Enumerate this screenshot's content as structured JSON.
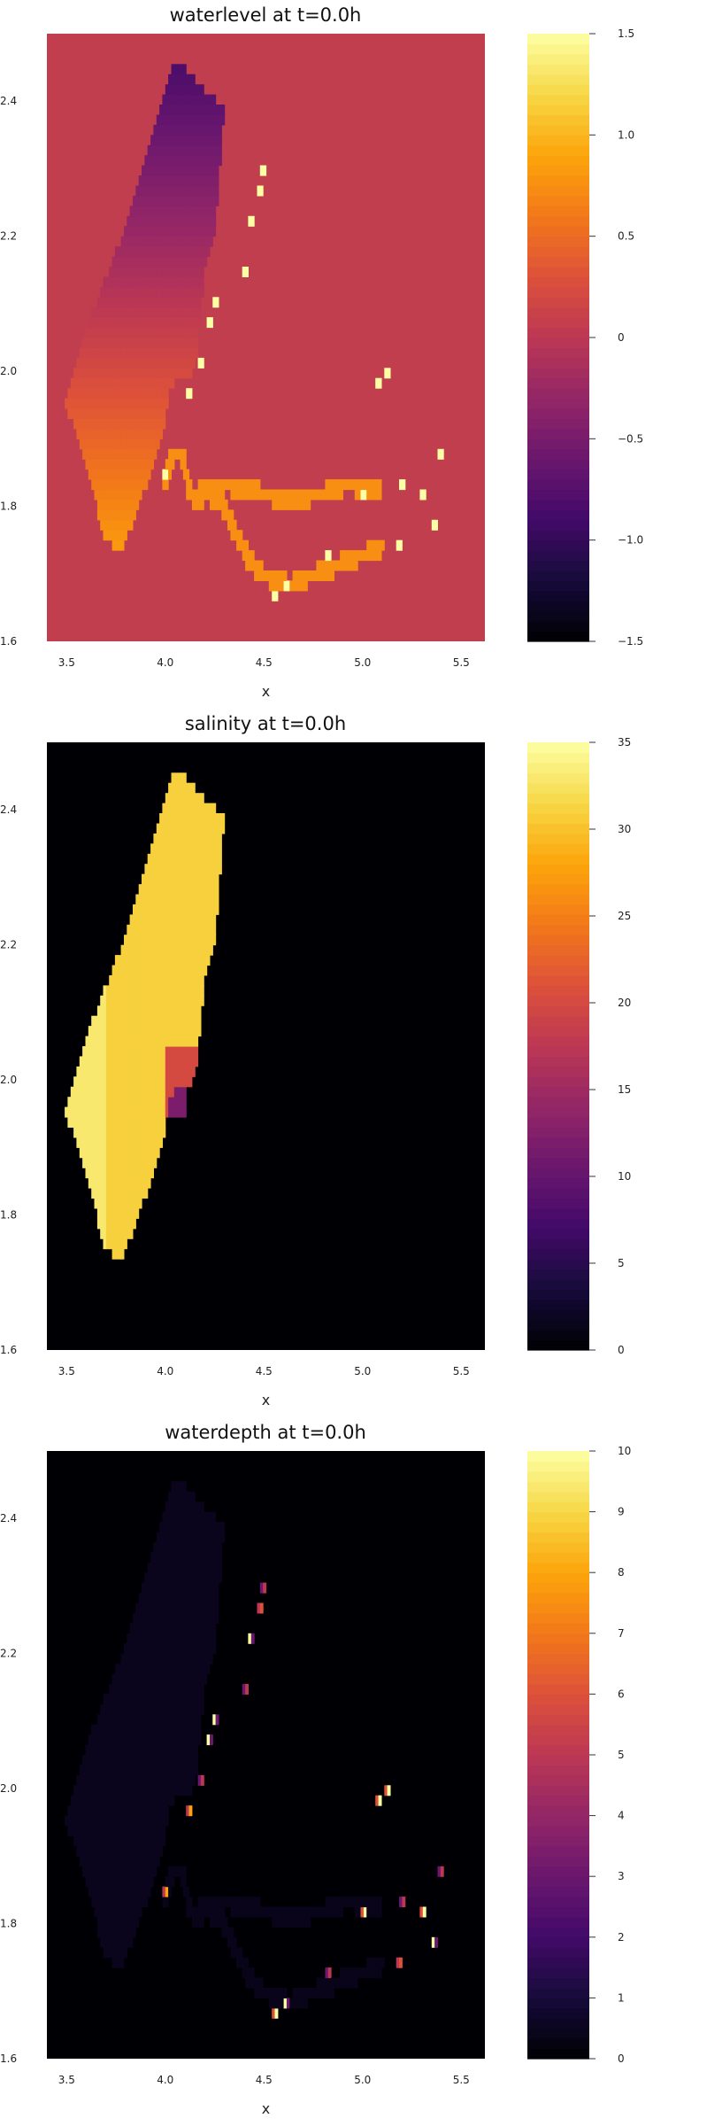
{
  "chart_data": [
    {
      "type": "heatmap",
      "title": "waterlevel at t=0.0h",
      "xlabel": "x",
      "ylabel": "",
      "xlim": [
        3.4,
        5.62
      ],
      "ylim": [
        1.6,
        2.5
      ],
      "xticks": [
        "3.5",
        "4.0",
        "4.5",
        "5.0",
        "5.5"
      ],
      "yticks": [
        "1.6",
        "1.8",
        "2.0",
        "2.2",
        "2.4"
      ],
      "colormap": "inferno",
      "colorbar_range": [
        -1.5,
        1.5
      ],
      "colorbar_ticks": [
        "−1.5",
        "−1.0",
        "−0.5",
        "0",
        "0.5",
        "1.0",
        "1.5"
      ],
      "background_value": 0,
      "background_color": "#c13e4e",
      "regions": {
        "basin_value_north": -0.85,
        "basin_value_south": 0.85,
        "channel_value": 0.75,
        "shoreline_value": 1.5
      }
    },
    {
      "type": "heatmap",
      "title": "salinity at t=0.0h",
      "xlabel": "x",
      "ylabel": "",
      "xlim": [
        3.4,
        5.62
      ],
      "ylim": [
        1.6,
        2.5
      ],
      "xticks": [
        "3.5",
        "4.0",
        "4.5",
        "5.0",
        "5.5"
      ],
      "yticks": [
        "1.6",
        "1.8",
        "2.0",
        "2.2",
        "2.4"
      ],
      "colormap": "inferno",
      "colorbar_range": [
        0,
        35
      ],
      "colorbar_ticks": [
        "0",
        "5",
        "10",
        "15",
        "20",
        "25",
        "30",
        "35"
      ],
      "background_value": 0,
      "background_color": "#000004",
      "regions": {
        "basin_value": 31,
        "basin_edge_value": 33,
        "mixing_zone_value": 20,
        "freshwater_value": 12
      }
    },
    {
      "type": "heatmap",
      "title": "waterdepth at t=0.0h",
      "xlabel": "x",
      "ylabel": "",
      "xlim": [
        3.4,
        5.62
      ],
      "ylim": [
        1.6,
        2.5
      ],
      "xticks": [
        "3.5",
        "4.0",
        "4.5",
        "5.0",
        "5.5"
      ],
      "yticks": [
        "1.6",
        "1.8",
        "2.0",
        "2.2",
        "2.4"
      ],
      "colormap": "inferno",
      "colorbar_range": [
        0,
        10
      ],
      "colorbar_ticks": [
        "0",
        "1",
        "2",
        "3",
        "4",
        "5",
        "6",
        "7",
        "8",
        "9",
        "10"
      ],
      "background_value": 0,
      "background_color": "#000004",
      "regions": {
        "basin_value": 0.45,
        "channel_value": 0.4,
        "spot_values": [
          3,
          4,
          5,
          6,
          8,
          10
        ]
      }
    }
  ]
}
